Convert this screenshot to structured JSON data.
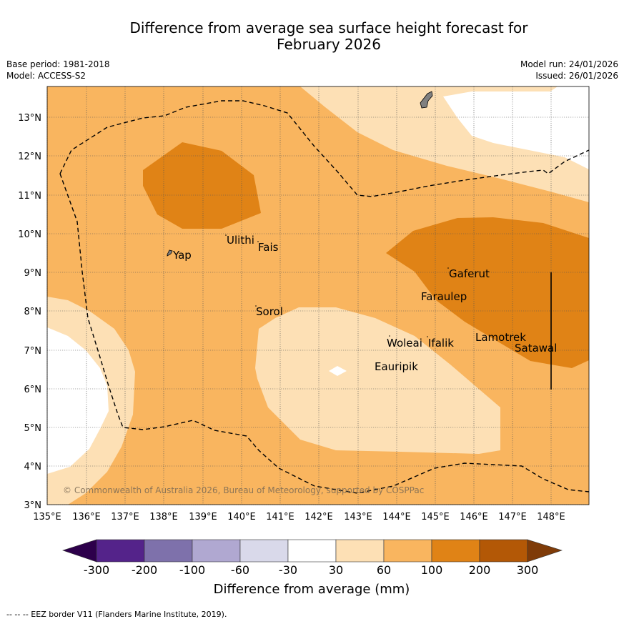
{
  "title_line1": "Difference from average sea surface height forecast for",
  "title_line2": "February 2026",
  "base_period": "Base period: 1981-2018",
  "model": "Model: ACCESS-S2",
  "model_run": "Model run: 24/01/2026",
  "issued": "Issued: 26/01/2026",
  "x_ticks": [
    "135°E",
    "136°E",
    "137°E",
    "138°E",
    "139°E",
    "140°E",
    "141°E",
    "142°E",
    "143°E",
    "144°E",
    "145°E",
    "146°E",
    "147°E",
    "148°E"
  ],
  "y_ticks": [
    "3°N",
    "4°N",
    "5°N",
    "6°N",
    "7°N",
    "8°N",
    "9°N",
    "10°N",
    "11°N",
    "12°N",
    "13°N"
  ],
  "places": {
    "yap": "Yap",
    "ulithi": "Ulithi",
    "fais": "Fais",
    "sorol": "Sorol",
    "gaferut": "Gaferut",
    "faraulep": "Faraulep",
    "woleai": "Woleai",
    "ifalik": "Ifalik",
    "eauripik": "Eauripik",
    "lamotrek": "Lamotrek",
    "satawal": "Satawal"
  },
  "copyright": "© Commonwealth of Australia 2026, Bureau of Meteorology, supported by COSPPac",
  "colorbar": {
    "label": "Difference from average (mm)",
    "tick_labels": [
      "-300",
      "-200",
      "-100",
      "-60",
      "-30",
      "30",
      "60",
      "100",
      "200",
      "300"
    ],
    "colors": [
      "#54238a",
      "#7e71ab",
      "#b0a8d1",
      "#d9d9ea",
      "#ffffff",
      "#fde0b5",
      "#f9b55f",
      "#e08316",
      "#b35806"
    ],
    "under_color": "#2d004b",
    "over_color": "#7f3b08"
  },
  "colors": {
    "band_30_60": "#fde0b5",
    "band_60_100": "#f9b55f",
    "band_100_200": "#e08316",
    "land": "#808080",
    "eez": "#000000"
  },
  "footer": "--  --  -- EEZ border V11 (Flanders Marine Institute, 2019)."
}
